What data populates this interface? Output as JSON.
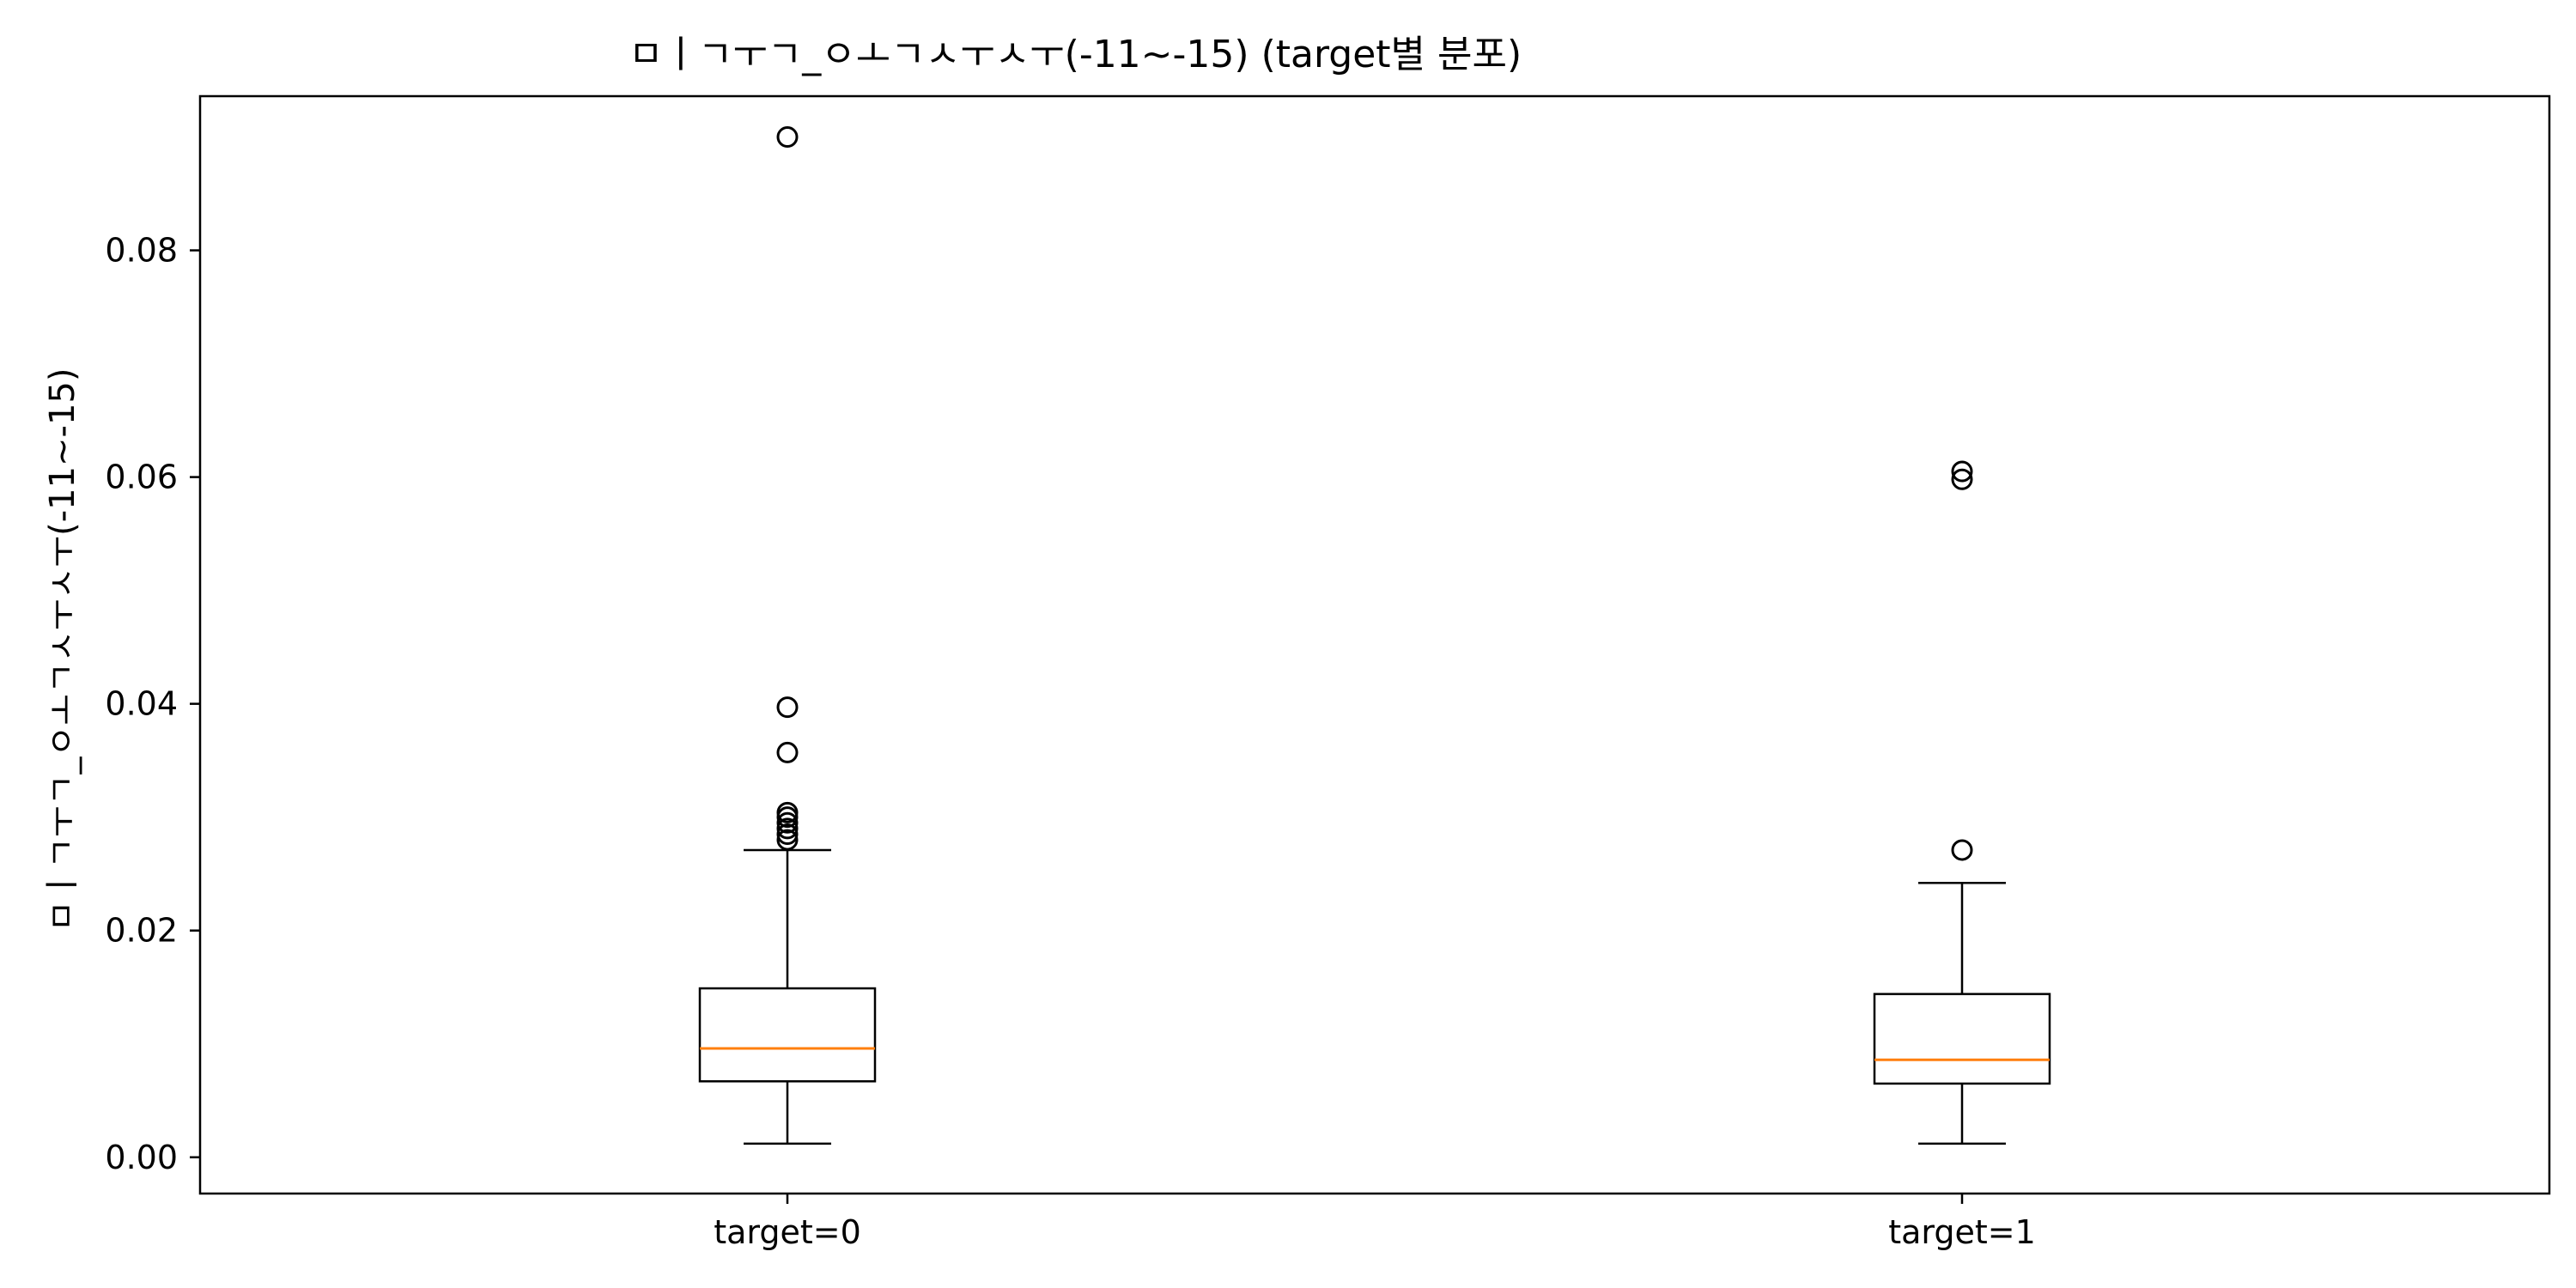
{
  "chart_data": {
    "type": "box",
    "title": "ㅁㅣㄱㅜㄱ_ㅇㅗㄱㅅㅜㅅㅜ(-11~-15) (target별 분포)",
    "xlabel": "",
    "ylabel": "ㅁㅣㄱㅜㄱ_ㅇㅗㄱㅅㅜㅅㅜ(-11~-15)",
    "categories": [
      "target=0",
      "target=1"
    ],
    "ylim": [
      -0.0032,
      0.0936
    ],
    "yticks": [
      0.0,
      0.02,
      0.04,
      0.06,
      0.08
    ],
    "ytick_labels": [
      "0.00",
      "0.02",
      "0.04",
      "0.06",
      "0.08"
    ],
    "grid": false,
    "boxes": [
      {
        "category": "target=0",
        "whisker_low": 0.0012,
        "q1": 0.0067,
        "median": 0.0096,
        "q3": 0.0149,
        "whisker_high": 0.0271,
        "outliers": [
          0.028,
          0.0285,
          0.029,
          0.0295,
          0.03,
          0.0304,
          0.0357,
          0.0397,
          0.09
        ]
      },
      {
        "category": "target=1",
        "whisker_low": 0.0012,
        "q1": 0.0065,
        "median": 0.0086,
        "q3": 0.0144,
        "whisker_high": 0.0242,
        "outliers": [
          0.0271,
          0.0598,
          0.0605
        ]
      }
    ],
    "colors": {
      "box": "#000000",
      "median": "#ff7f0e",
      "outlier": "#000000"
    }
  }
}
